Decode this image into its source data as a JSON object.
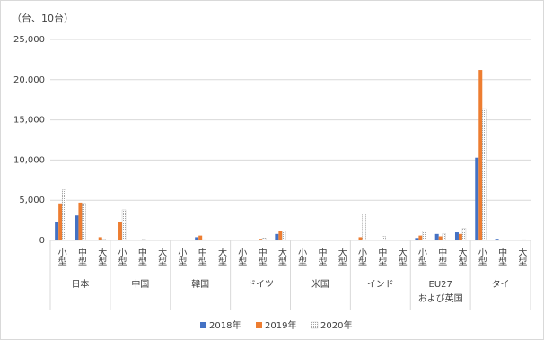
{
  "chart_data": {
    "type": "bar",
    "y_label": "（台、10台）",
    "groups": [
      {
        "name": "日本",
        "categories": [
          "小型",
          "中型",
          "大型"
        ]
      },
      {
        "name": "中国",
        "categories": [
          "小型",
          "中型",
          "大型"
        ]
      },
      {
        "name": "韓国",
        "categories": [
          "小型",
          "中型",
          "大型"
        ]
      },
      {
        "name": "ドイツ",
        "categories": [
          "小型",
          "中型",
          "大型"
        ]
      },
      {
        "name": "米国",
        "categories": [
          "小型",
          "中型",
          "大型"
        ]
      },
      {
        "name": "インド",
        "categories": [
          "小型",
          "中型",
          "大型"
        ]
      },
      {
        "name": "EU27\nおよび英国",
        "categories": [
          "小型",
          "中型",
          "大型"
        ]
      },
      {
        "name": "タイ",
        "categories": [
          "小型",
          "中型",
          "大型"
        ]
      }
    ],
    "series": [
      {
        "name": "2018年",
        "color": "#4472c4",
        "values": [
          2300,
          3100,
          0,
          0,
          0,
          0,
          0,
          400,
          0,
          0,
          0,
          800,
          0,
          0,
          0,
          0,
          0,
          0,
          300,
          800,
          1000,
          10300,
          200,
          0
        ]
      },
      {
        "name": "2019年",
        "color": "#ed7d31",
        "values": [
          4600,
          4700,
          400,
          2300,
          100,
          100,
          100,
          600,
          0,
          0,
          200,
          1200,
          0,
          0,
          0,
          400,
          0,
          0,
          600,
          500,
          800,
          21200,
          100,
          0
        ]
      },
      {
        "name": "2020年",
        "color": "#a5a5a5",
        "pattern": "dots",
        "values": [
          6300,
          4600,
          200,
          3800,
          150,
          0,
          0,
          100,
          0,
          0,
          300,
          1200,
          0,
          0,
          0,
          3300,
          500,
          0,
          1200,
          800,
          1500,
          16400,
          0,
          100
        ]
      }
    ],
    "ylim": [
      0,
      25000
    ],
    "yticks": [
      0,
      {
        "value": 5000,
        "label": "5,000"
      },
      {
        "value": 10000,
        "label": "10,000"
      },
      {
        "value": 15000,
        "label": "15,000"
      },
      {
        "value": 20000,
        "label": "20,000"
      },
      {
        "value": 25000,
        "label": "25,000"
      }
    ],
    "grid": true,
    "legend": "bottom"
  }
}
